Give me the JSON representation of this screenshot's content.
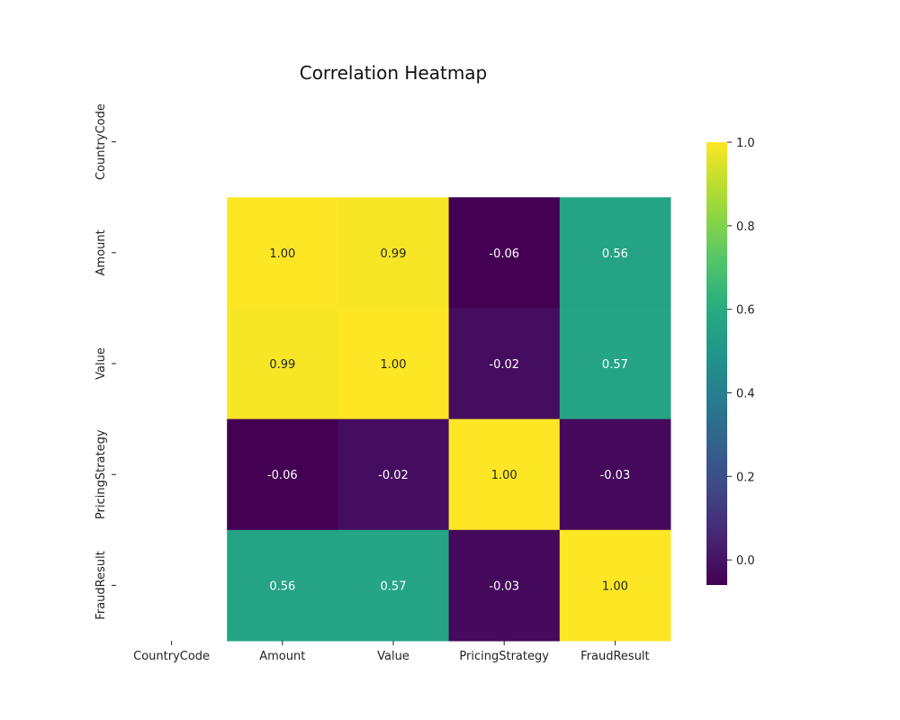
{
  "chart_data": {
    "type": "heatmap",
    "title": "Correlation Heatmap",
    "xlabel": "",
    "ylabel": "",
    "x_labels": [
      "CountryCode",
      "Amount",
      "Value",
      "PricingStrategy",
      "FraudResult"
    ],
    "y_labels": [
      "CountryCode",
      "Amount",
      "Value",
      "PricingStrategy",
      "FraudResult"
    ],
    "matrix": [
      [
        null,
        null,
        null,
        null,
        null
      ],
      [
        null,
        1.0,
        0.99,
        -0.06,
        0.56
      ],
      [
        null,
        0.99,
        1.0,
        -0.02,
        0.57
      ],
      [
        null,
        -0.06,
        -0.02,
        1.0,
        -0.03
      ],
      [
        null,
        0.56,
        0.57,
        -0.03,
        1.0
      ]
    ],
    "value_format": "0.00",
    "colormap": "viridis",
    "colorbar": {
      "vmin": -0.06,
      "vmax": 1.0,
      "ticks": [
        0.0,
        0.2,
        0.4,
        0.6,
        0.8,
        1.0
      ],
      "tick_labels": [
        "0.0",
        "0.2",
        "0.4",
        "0.6",
        "0.8",
        "1.0"
      ]
    },
    "grid": false
  }
}
